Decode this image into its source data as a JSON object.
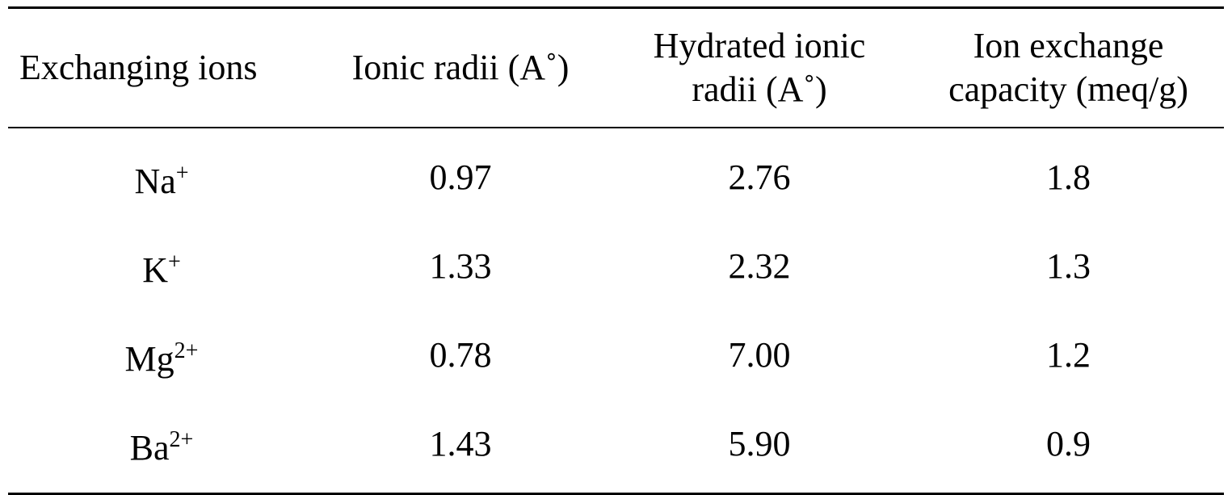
{
  "table": {
    "headers": [
      {
        "lines": [
          "Exchanging ions"
        ]
      },
      {
        "lines": [
          "Ionic radii (A˚)"
        ]
      },
      {
        "lines": [
          "Hydrated ionic",
          "radii (A˚)"
        ]
      },
      {
        "lines": [
          "Ion exchange",
          "capacity (meq/g)"
        ]
      }
    ],
    "rows": [
      {
        "ion": "Na",
        "charge": "+",
        "ionic_radii": "0.97",
        "hydrated_radii": "2.76",
        "capacity": "1.8"
      },
      {
        "ion": "K",
        "charge": "+",
        "ionic_radii": "1.33",
        "hydrated_radii": "2.32",
        "capacity": "1.3"
      },
      {
        "ion": "Mg",
        "charge": "2+",
        "ionic_radii": "0.78",
        "hydrated_radii": "7.00",
        "capacity": "1.2"
      },
      {
        "ion": "Ba",
        "charge": "2+",
        "ionic_radii": "1.43",
        "hydrated_radii": "5.90",
        "capacity": "0.9"
      }
    ]
  }
}
